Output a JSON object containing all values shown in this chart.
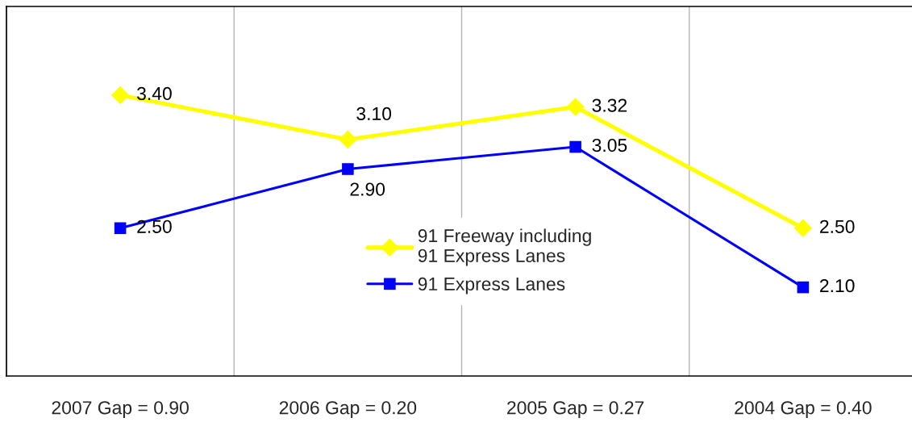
{
  "chart_data": {
    "type": "line",
    "categories": [
      "2007 Gap = 0.90",
      "2006 Gap = 0.20",
      "2005 Gap = 0.27",
      "2004 Gap = 0.40"
    ],
    "series": [
      {
        "name": "91 Freeway including\n91 Express Lanes",
        "color": "#ffff00",
        "marker": "diamond",
        "values": [
          3.4,
          3.1,
          3.32,
          2.5
        ],
        "value_labels": [
          "3.40",
          "3.10",
          "3.32",
          "2.50"
        ]
      },
      {
        "name": "91 Express Lanes",
        "color": "#0000ff",
        "marker": "square",
        "values": [
          2.5,
          2.9,
          3.05,
          2.1
        ],
        "value_labels": [
          "2.50",
          "2.90",
          "3.05",
          "2.10"
        ]
      }
    ],
    "ylim": [
      1.5,
      4.0
    ],
    "tick_labels": "x",
    "grid": "x",
    "legend": "center"
  }
}
